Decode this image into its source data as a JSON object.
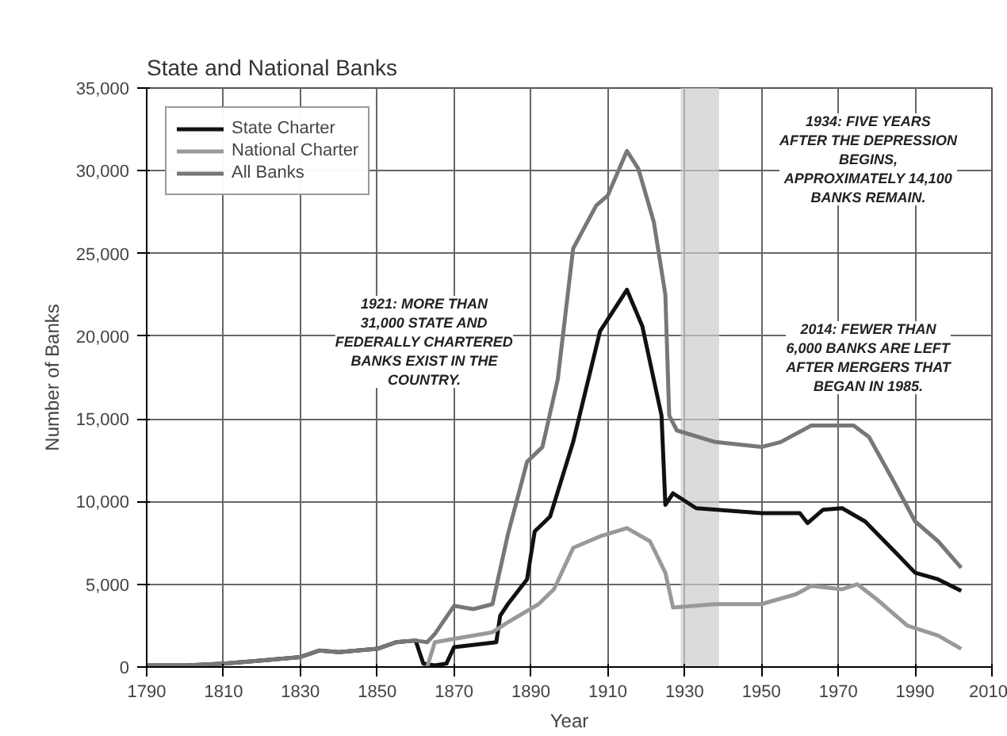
{
  "chart_data": {
    "type": "line",
    "title": "State and National Banks",
    "xlabel": "Year",
    "ylabel": "Number of Banks",
    "xlim": [
      1790,
      2010
    ],
    "xticks": [
      1790,
      1810,
      1830,
      1850,
      1870,
      1890,
      1910,
      1930,
      1950,
      1970,
      1990,
      {
        "value": 2010,
        "label": "2010"
      }
    ],
    "ylim": [
      0,
      35000
    ],
    "yticks": [
      0,
      {
        "value": 5000,
        "label": "5,000"
      },
      {
        "value": 10000,
        "label": "10,000"
      },
      {
        "value": 15000,
        "label": "15,000"
      },
      {
        "value": 20000,
        "label": "20,000"
      },
      {
        "value": 25000,
        "label": "25,000"
      },
      {
        "value": 30000,
        "label": "30,000"
      },
      {
        "value": 35000,
        "label": "35,000"
      }
    ],
    "grid": true,
    "legend": "top left",
    "marker": "none",
    "line_style": "solid",
    "bands": [
      {
        "axis": "x",
        "from": 1929,
        "to": 1939,
        "color": "#cccccc"
      }
    ],
    "annotations": [
      "1921: MORE THAN 31,000 STATE AND FEDERALLY CHARTERED BANKS EXIST IN THE COUNTRY.",
      "1934: FIVE YEARS AFTER THE DEPRESSION BEGINS, APPROXIMATELY 14,100 BANKS REMAIN.",
      "2014: FEWER THAN 6,000 BANKS ARE LEFT AFTER MERGERS THAT BEGAN IN 1985."
    ],
    "series": [
      {
        "name": "State Charter",
        "color": "#111111",
        "x": [
          1790,
          1800,
          1810,
          1820,
          1830,
          1835,
          1840,
          1850,
          1855,
          1860,
          1862,
          1865,
          1868,
          1870,
          1881,
          1882,
          1884,
          1889,
          1891,
          1895,
          1901,
          1908,
          1915,
          1919,
          1924,
          1925,
          1927,
          1933,
          1950,
          1960,
          1962,
          1966,
          1971,
          1977,
          1985,
          1990,
          1996,
          2002
        ],
        "values": [
          100,
          100,
          200,
          400,
          600,
          1000,
          900,
          1100,
          1500,
          1600,
          200,
          100,
          200,
          1200,
          1500,
          3100,
          3800,
          5300,
          8200,
          9100,
          13600,
          20300,
          22800,
          20600,
          15200,
          9800,
          10500,
          9600,
          9300,
          9300,
          8700,
          9500,
          9600,
          8800,
          6900,
          5700,
          5300,
          4600
        ]
      },
      {
        "name": "National Charter",
        "color": "#999999",
        "x": [
          1863,
          1865,
          1870,
          1880,
          1884,
          1892,
          1896,
          1901,
          1908,
          1915,
          1921,
          1925,
          1927,
          1938,
          1950,
          1959,
          1963,
          1971,
          1975,
          1980,
          1988,
          1996,
          2002
        ],
        "values": [
          0,
          1500,
          1700,
          2100,
          2700,
          3800,
          4700,
          7200,
          7900,
          8400,
          7600,
          5700,
          3600,
          3800,
          3800,
          4400,
          4900,
          4700,
          5000,
          4100,
          2500,
          1900,
          1100
        ]
      },
      {
        "name": "All Banks",
        "color": "#777777",
        "x": [
          1790,
          1800,
          1810,
          1820,
          1830,
          1835,
          1840,
          1850,
          1855,
          1860,
          1863,
          1865,
          1870,
          1875,
          1880,
          1884,
          1889,
          1893,
          1897,
          1901,
          1907,
          1910,
          1915,
          1918,
          1922,
          1925,
          1926,
          1928,
          1938,
          1950,
          1955,
          1963,
          1974,
          1978,
          1984,
          1990,
          1996,
          2002
        ],
        "values": [
          100,
          100,
          200,
          400,
          600,
          1000,
          900,
          1100,
          1500,
          1600,
          1500,
          2000,
          3700,
          3500,
          3800,
          8000,
          12400,
          13300,
          17400,
          25300,
          27900,
          28500,
          31200,
          30100,
          26900,
          22500,
          15200,
          14300,
          13600,
          13300,
          13600,
          14600,
          14600,
          13900,
          11400,
          8800,
          7600,
          6000
        ]
      }
    ]
  }
}
